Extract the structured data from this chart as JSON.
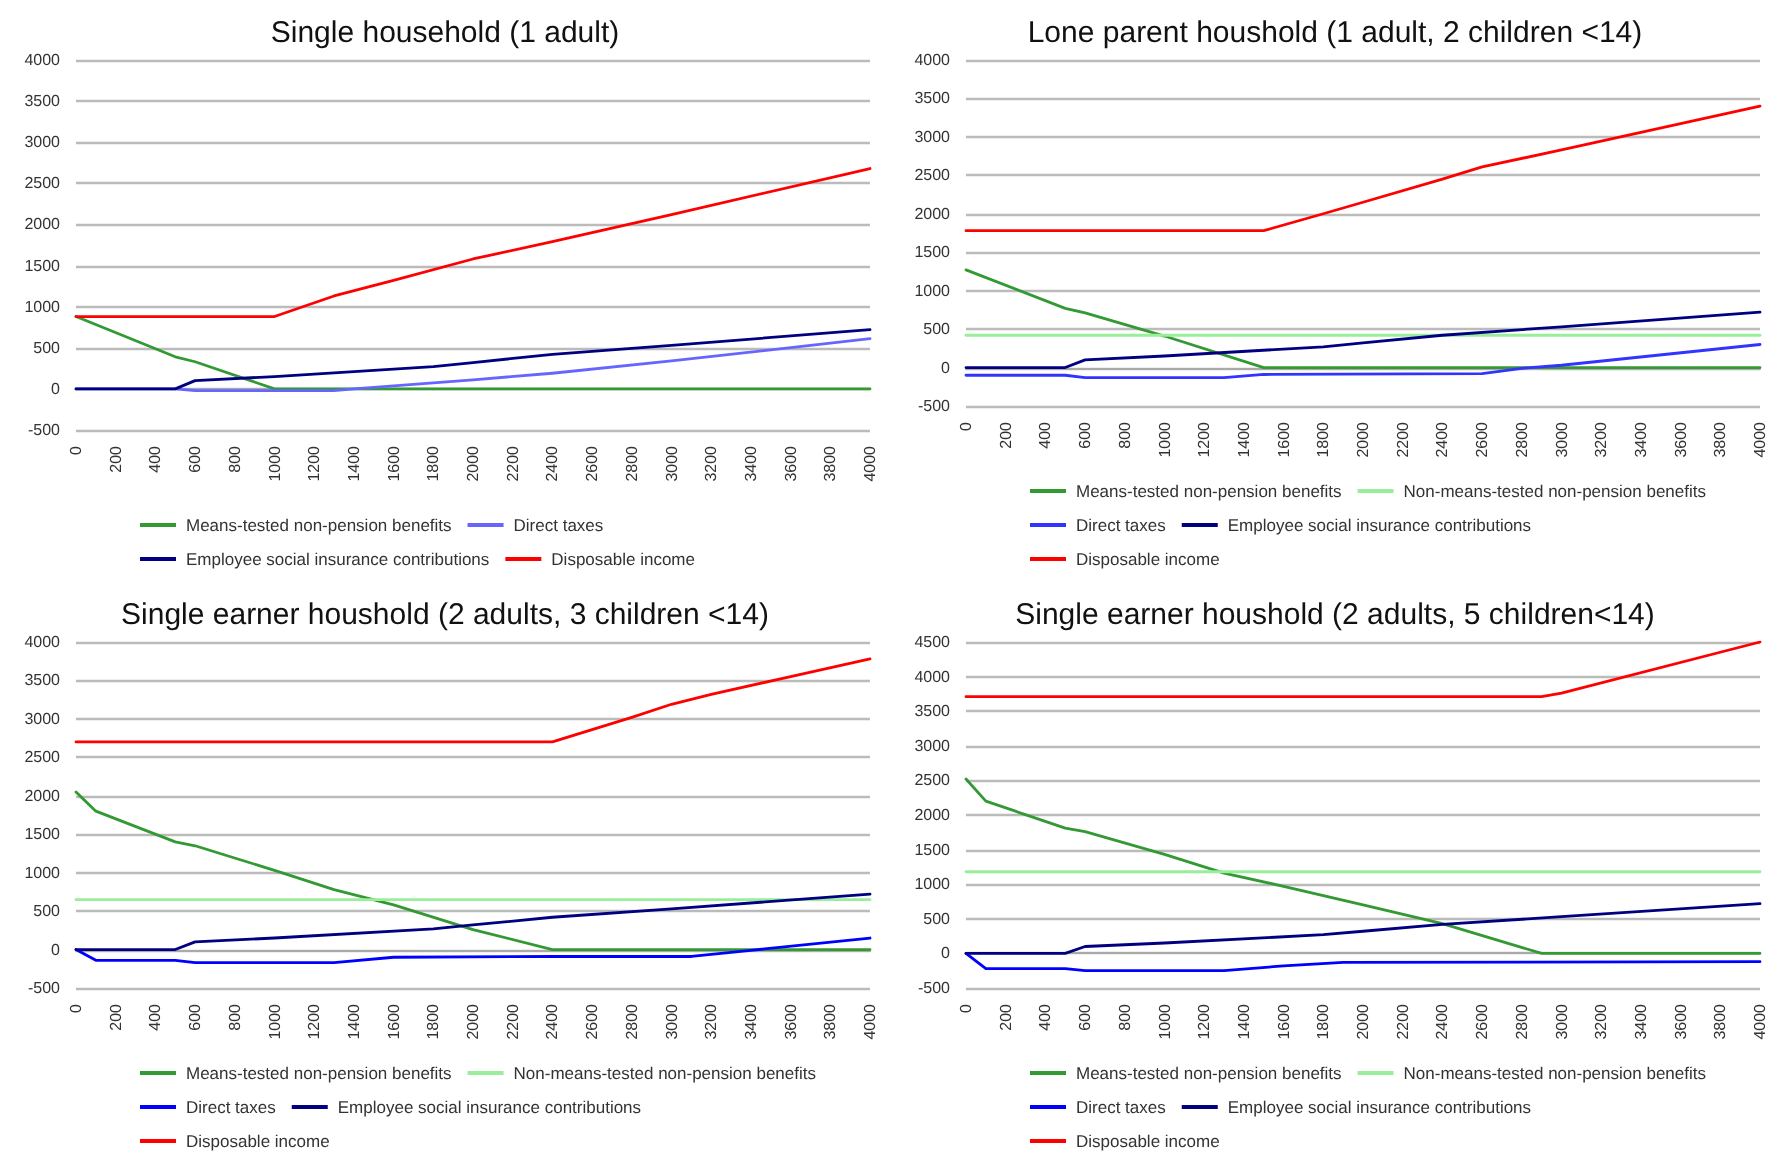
{
  "chart_data": [
    {
      "type": "line",
      "title": "Single household (1 adult)",
      "xlim": [
        0,
        4000
      ],
      "xticks": [
        0,
        200,
        400,
        600,
        800,
        1000,
        1200,
        1400,
        1600,
        1800,
        2000,
        2200,
        2400,
        2600,
        2800,
        3000,
        3200,
        3400,
        3600,
        3800,
        4000
      ],
      "ylim": [
        -500,
        4000
      ],
      "yticks": [
        -500,
        0,
        500,
        1000,
        1500,
        2000,
        2500,
        3000,
        3500,
        4000
      ],
      "grid": "y",
      "legend": "bottom",
      "marker": "none",
      "line_style": "solid",
      "series": [
        {
          "name": "Means-tested non-pension benefits",
          "color": "#339933",
          "x": [
            0,
            500,
            600,
            1000,
            4000
          ],
          "values": [
            880,
            390,
            330,
            0,
            0
          ]
        },
        {
          "name": "Direct taxes",
          "color": "#6666ff",
          "x": [
            0,
            500,
            600,
            1300,
            1400,
            2000,
            2400,
            3000,
            4000
          ],
          "values": [
            0,
            0,
            -20,
            -20,
            0,
            110,
            190,
            340,
            610
          ]
        },
        {
          "name": "Employee social insurance contributions",
          "color": "#000080",
          "x": [
            0,
            500,
            600,
            1000,
            1800,
            2000,
            2400,
            3000,
            4000
          ],
          "values": [
            0,
            0,
            100,
            150,
            270,
            320,
            420,
            530,
            720
          ]
        },
        {
          "name": "Disposable income",
          "color": "#ff0000",
          "x": [
            0,
            1000,
            1300,
            1600,
            2000,
            2400,
            3000,
            4000
          ],
          "values": [
            880,
            880,
            1130,
            1320,
            1580,
            1790,
            2120,
            2680
          ]
        }
      ]
    },
    {
      "type": "line",
      "title": "Lone parent houshold (1 adult, 2 children <14)",
      "xlim": [
        0,
        4000
      ],
      "xticks": [
        0,
        200,
        400,
        600,
        800,
        1000,
        1200,
        1400,
        1600,
        1800,
        2000,
        2200,
        2400,
        2600,
        2800,
        3000,
        3200,
        3400,
        3600,
        3800,
        4000
      ],
      "ylim": [
        -500,
        4000
      ],
      "yticks": [
        -500,
        0,
        500,
        1000,
        1500,
        2000,
        2500,
        3000,
        3500,
        4000
      ],
      "grid": "y",
      "legend": "bottom",
      "marker": "none",
      "line_style": "solid",
      "series": [
        {
          "name": "Means-tested non-pension benefits",
          "color": "#339933",
          "x": [
            0,
            500,
            600,
            1000,
            1500,
            4000
          ],
          "values": [
            1270,
            770,
            710,
            410,
            0,
            0
          ]
        },
        {
          "name": "Non-means-tested non-pension benefits",
          "color": "#99ee99",
          "x": [
            0,
            4000
          ],
          "values": [
            420,
            420
          ]
        },
        {
          "name": "Direct taxes",
          "color": "#3333ff",
          "x": [
            0,
            500,
            600,
            1300,
            1500,
            2600,
            2800,
            3000,
            4000
          ],
          "values": [
            -100,
            -100,
            -130,
            -130,
            -90,
            -80,
            -10,
            30,
            300
          ]
        },
        {
          "name": "Employee social insurance contributions",
          "color": "#000080",
          "x": [
            0,
            500,
            600,
            1000,
            1800,
            2000,
            2400,
            3000,
            4000
          ],
          "values": [
            0,
            0,
            100,
            150,
            270,
            320,
            420,
            530,
            720
          ]
        },
        {
          "name": "Disposable income",
          "color": "#ff0000",
          "x": [
            0,
            1500,
            1800,
            2000,
            2400,
            2600,
            3000,
            4000
          ],
          "values": [
            1780,
            1780,
            2000,
            2150,
            2450,
            2610,
            2830,
            3400
          ]
        }
      ]
    },
    {
      "type": "line",
      "title": "Single earner houshold (2 adults, 3 children <14)",
      "xlim": [
        0,
        4000
      ],
      "xticks": [
        0,
        200,
        400,
        600,
        800,
        1000,
        1200,
        1400,
        1600,
        1800,
        2000,
        2200,
        2400,
        2600,
        2800,
        3000,
        3200,
        3400,
        3600,
        3800,
        4000
      ],
      "ylim": [
        -500,
        4000
      ],
      "yticks": [
        -500,
        0,
        500,
        1000,
        1500,
        2000,
        2500,
        3000,
        3500,
        4000
      ],
      "grid": "y",
      "legend": "bottom",
      "marker": "none",
      "line_style": "solid",
      "series": [
        {
          "name": "Means-tested non-pension benefits",
          "color": "#339933",
          "x": [
            0,
            100,
            500,
            600,
            1000,
            1300,
            1600,
            2000,
            2400,
            4000
          ],
          "values": [
            2050,
            1800,
            1400,
            1350,
            1030,
            780,
            580,
            260,
            0,
            0
          ]
        },
        {
          "name": "Non-means-tested non-pension benefits",
          "color": "#99ee99",
          "x": [
            0,
            4000
          ],
          "values": [
            650,
            650
          ]
        },
        {
          "name": "Direct taxes",
          "color": "#0000ff",
          "x": [
            0,
            100,
            500,
            600,
            1300,
            1600,
            2400,
            3100,
            3400,
            4000
          ],
          "values": [
            0,
            -140,
            -140,
            -170,
            -170,
            -100,
            -90,
            -90,
            -10,
            150
          ]
        },
        {
          "name": "Employee social insurance contributions",
          "color": "#000080",
          "x": [
            0,
            500,
            600,
            1000,
            1800,
            2000,
            2400,
            3000,
            4000
          ],
          "values": [
            0,
            0,
            100,
            150,
            270,
            320,
            420,
            530,
            720
          ]
        },
        {
          "name": "Disposable income",
          "color": "#ff0000",
          "x": [
            0,
            2400,
            2800,
            3000,
            3200,
            3600,
            4000
          ],
          "values": [
            2700,
            2700,
            3020,
            3190,
            3320,
            3550,
            3780
          ]
        }
      ]
    },
    {
      "type": "line",
      "title": "Single earner houshold (2 adults, 5 children<14)",
      "xlim": [
        0,
        4000
      ],
      "xticks": [
        0,
        200,
        400,
        600,
        800,
        1000,
        1200,
        1400,
        1600,
        1800,
        2000,
        2200,
        2400,
        2600,
        2800,
        3000,
        3200,
        3400,
        3600,
        3800,
        4000
      ],
      "ylim": [
        -500,
        4500
      ],
      "yticks": [
        -500,
        0,
        500,
        1000,
        1500,
        2000,
        2500,
        3000,
        3500,
        4000,
        4500
      ],
      "grid": "y",
      "legend": "bottom",
      "marker": "none",
      "line_style": "solid",
      "series": [
        {
          "name": "Means-tested non-pension benefits",
          "color": "#339933",
          "x": [
            0,
            100,
            500,
            600,
            1000,
            1300,
            1600,
            2000,
            2400,
            2900,
            4000
          ],
          "values": [
            2520,
            2200,
            1810,
            1760,
            1430,
            1160,
            970,
            700,
            430,
            0,
            0
          ]
        },
        {
          "name": "Non-means-tested non-pension benefits",
          "color": "#99ee99",
          "x": [
            0,
            4000
          ],
          "values": [
            1180,
            1180
          ]
        },
        {
          "name": "Direct taxes",
          "color": "#0000ff",
          "x": [
            0,
            100,
            500,
            600,
            1300,
            1600,
            1900,
            4000
          ],
          "values": [
            0,
            -220,
            -220,
            -250,
            -250,
            -180,
            -130,
            -120
          ]
        },
        {
          "name": "Employee social insurance contributions",
          "color": "#000080",
          "x": [
            0,
            500,
            600,
            1000,
            1800,
            2000,
            2400,
            3000,
            4000
          ],
          "values": [
            0,
            0,
            100,
            150,
            270,
            320,
            420,
            530,
            720
          ]
        },
        {
          "name": "Disposable income",
          "color": "#ff0000",
          "x": [
            0,
            2900,
            3000,
            4000
          ],
          "values": [
            3710,
            3710,
            3760,
            4500
          ]
        }
      ]
    }
  ]
}
